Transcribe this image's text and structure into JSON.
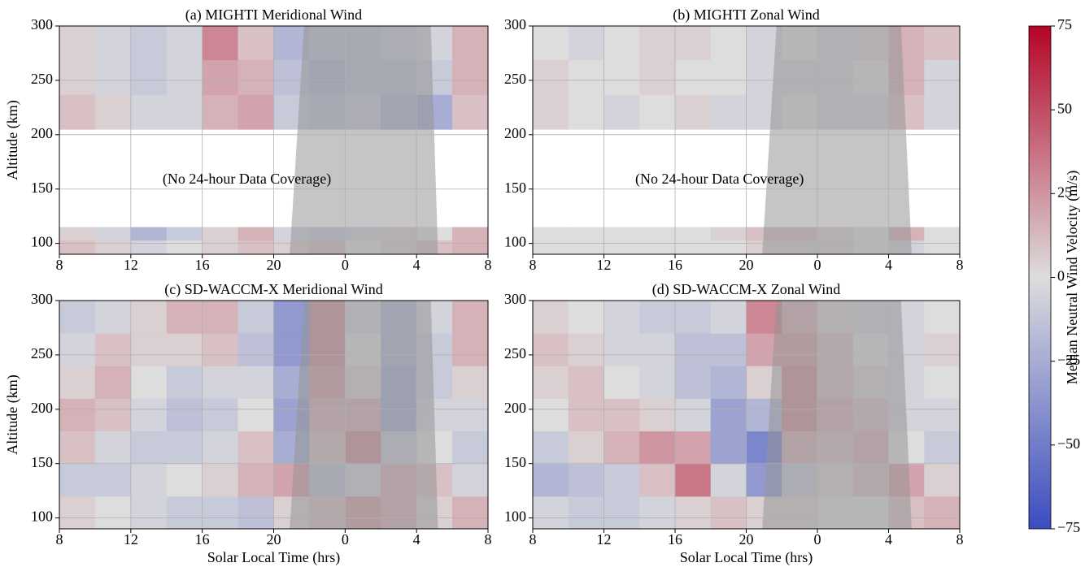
{
  "chart_data": [
    {
      "type": "heatmap",
      "title": "(a) MIGHTI Meridional Wind",
      "ylabel": "Altitude (km)",
      "annotation": "(No 24-hour Data Coverage)",
      "xlim": [
        8,
        32
      ],
      "ylim": [
        90,
        300
      ],
      "xticks": [
        8,
        12,
        16,
        20,
        {
          "value": 24,
          "label": "0"
        },
        {
          "value": 28,
          "label": "4"
        },
        {
          "value": 32,
          "label": "8"
        }
      ],
      "yticks": [
        100,
        150,
        200,
        250,
        300
      ],
      "grid": true,
      "x_bins": [
        8,
        10,
        12,
        14,
        16,
        18,
        20,
        22,
        24,
        26,
        28,
        30,
        32
      ],
      "y_bins": [
        90,
        103,
        115,
        205,
        237,
        269,
        300
      ],
      "z": [
        [
          10,
          5,
          -5,
          0,
          5,
          10,
          5,
          10,
          0,
          5,
          10,
          15
        ],
        [
          5,
          -5,
          -20,
          -10,
          5,
          15,
          -5,
          -10,
          -5,
          5,
          0,
          15
        ],
        [
          null,
          null,
          null,
          null,
          null,
          null,
          null,
          null,
          null,
          null,
          null,
          null
        ],
        [
          10,
          5,
          -5,
          -5,
          15,
          20,
          -10,
          -15,
          -10,
          -20,
          -25,
          10
        ],
        [
          5,
          -5,
          -10,
          -5,
          20,
          15,
          -15,
          -20,
          -15,
          -15,
          -10,
          15
        ],
        [
          5,
          -5,
          -10,
          -5,
          30,
          10,
          -20,
          -15,
          -15,
          -10,
          -5,
          15
        ]
      ],
      "night_shade": {
        "x_bottom": [
          20.9,
          29.2
        ],
        "x_top": [
          21.7,
          28.8
        ]
      }
    },
    {
      "type": "heatmap",
      "title": "(b) MIGHTI Zonal Wind",
      "annotation": "(No 24-hour Data Coverage)",
      "xlim": [
        8,
        32
      ],
      "ylim": [
        90,
        300
      ],
      "xticks": [
        8,
        12,
        16,
        20,
        {
          "value": 24,
          "label": "0"
        },
        {
          "value": 28,
          "label": "4"
        },
        {
          "value": 32,
          "label": "8"
        }
      ],
      "yticks": [
        100,
        150,
        200,
        250,
        300
      ],
      "grid": true,
      "x_bins": [
        8,
        10,
        12,
        14,
        16,
        18,
        20,
        22,
        24,
        26,
        28,
        30,
        32
      ],
      "y_bins": [
        90,
        103,
        115,
        205,
        237,
        269,
        300
      ],
      "z": [
        [
          0,
          0,
          0,
          0,
          0,
          0,
          5,
          5,
          5,
          0,
          -5,
          0
        ],
        [
          0,
          0,
          0,
          0,
          0,
          5,
          10,
          10,
          5,
          0,
          15,
          0
        ],
        [
          null,
          null,
          null,
          null,
          null,
          null,
          null,
          null,
          null,
          null,
          null,
          null
        ],
        [
          5,
          0,
          -5,
          0,
          5,
          -5,
          -5,
          0,
          -5,
          -5,
          10,
          -5
        ],
        [
          5,
          0,
          0,
          5,
          0,
          0,
          -5,
          -5,
          -5,
          0,
          15,
          -5
        ],
        [
          0,
          -5,
          0,
          5,
          5,
          0,
          -5,
          0,
          -5,
          5,
          15,
          10
        ]
      ],
      "night_shade": {
        "x_bottom": [
          20.9,
          29.3
        ],
        "x_top": [
          21.7,
          28.7
        ]
      }
    },
    {
      "type": "heatmap",
      "title": "(c) SD-WACCM-X Meridional Wind",
      "ylabel": "Altitude (km)",
      "xlabel": "Solar Local Time (hrs)",
      "xlim": [
        8,
        32
      ],
      "ylim": [
        90,
        300
      ],
      "xticks": [
        8,
        12,
        16,
        20,
        {
          "value": 24,
          "label": "0"
        },
        {
          "value": 28,
          "label": "4"
        },
        {
          "value": 32,
          "label": "8"
        }
      ],
      "yticks": [
        100,
        150,
        200,
        250,
        300
      ],
      "grid": true,
      "x_bins": [
        8,
        10,
        12,
        14,
        16,
        18,
        20,
        22,
        24,
        26,
        28,
        30,
        32
      ],
      "y_bins": [
        90,
        120,
        150,
        180,
        210,
        240,
        270,
        300
      ],
      "z": [
        [
          5,
          0,
          -5,
          -10,
          -10,
          -15,
          5,
          10,
          20,
          15,
          5,
          15
        ],
        [
          -10,
          -10,
          -5,
          0,
          5,
          15,
          20,
          -15,
          -5,
          15,
          10,
          -5
        ],
        [
          10,
          -5,
          -10,
          -10,
          -5,
          10,
          -25,
          10,
          25,
          -10,
          0,
          -10
        ],
        [
          15,
          10,
          -5,
          -15,
          -10,
          0,
          -30,
          15,
          15,
          -25,
          -5,
          -5
        ],
        [
          5,
          15,
          0,
          -10,
          -5,
          -5,
          -25,
          20,
          5,
          -25,
          -10,
          5
        ],
        [
          -5,
          10,
          5,
          5,
          10,
          -15,
          -35,
          25,
          0,
          -20,
          -10,
          15
        ],
        [
          -10,
          -5,
          5,
          15,
          15,
          -10,
          -35,
          25,
          -5,
          -20,
          -5,
          15
        ]
      ],
      "night_shade": {
        "x_bottom": [
          20.9,
          29.2
        ],
        "x_top": [
          21.7,
          28.8
        ]
      }
    },
    {
      "type": "heatmap",
      "title": "(d) SD-WACCM-X Zonal Wind",
      "xlabel": "Solar Local Time (hrs)",
      "xlim": [
        8,
        32
      ],
      "ylim": [
        90,
        300
      ],
      "xticks": [
        8,
        12,
        16,
        20,
        {
          "value": 24,
          "label": "0"
        },
        {
          "value": 28,
          "label": "4"
        },
        {
          "value": 32,
          "label": "8"
        }
      ],
      "yticks": [
        100,
        150,
        200,
        250,
        300
      ],
      "grid": true,
      "x_bins": [
        8,
        10,
        12,
        14,
        16,
        18,
        20,
        22,
        24,
        26,
        28,
        30,
        32
      ],
      "y_bins": [
        90,
        120,
        150,
        180,
        210,
        240,
        270,
        300
      ],
      "z": [
        [
          -5,
          -10,
          -10,
          -5,
          5,
          10,
          5,
          5,
          0,
          0,
          10,
          15
        ],
        [
          -20,
          -15,
          -10,
          10,
          35,
          -5,
          -35,
          -10,
          5,
          10,
          20,
          5
        ],
        [
          -10,
          5,
          15,
          25,
          20,
          -30,
          -45,
          15,
          10,
          15,
          0,
          -10
        ],
        [
          0,
          10,
          10,
          5,
          -5,
          -30,
          -20,
          25,
          15,
          10,
          -5,
          -5
        ],
        [
          5,
          10,
          0,
          -5,
          -15,
          -20,
          5,
          25,
          10,
          5,
          -5,
          0
        ],
        [
          10,
          5,
          -5,
          -5,
          -15,
          -15,
          20,
          20,
          10,
          0,
          -5,
          5
        ],
        [
          5,
          0,
          -5,
          -10,
          -10,
          -5,
          30,
          15,
          5,
          -5,
          -5,
          0
        ]
      ],
      "night_shade": {
        "x_bottom": [
          20.9,
          29.3
        ],
        "x_top": [
          21.7,
          28.7
        ]
      }
    }
  ],
  "colorbar": {
    "label": "Median Neutral Wind Velocity (m/s)",
    "clim": [
      -75,
      75
    ],
    "colors": [
      "#3b4cc0",
      "#dddddd",
      "#b40426"
    ],
    "ticks": [
      {
        "value": -75,
        "label": "−75"
      },
      {
        "value": -50,
        "label": "−50"
      },
      {
        "value": -25,
        "label": "−25"
      },
      0,
      25,
      50,
      75
    ]
  }
}
